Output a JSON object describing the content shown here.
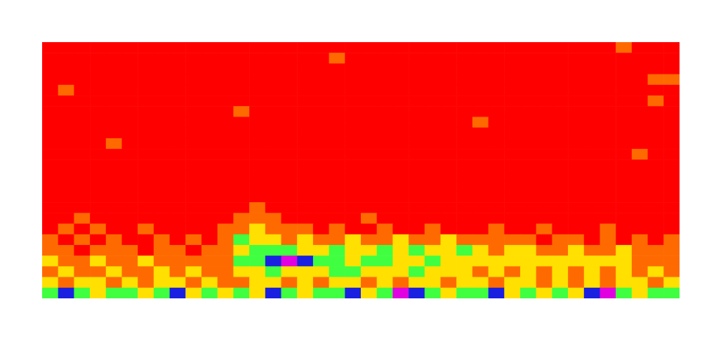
{
  "chart_data": {
    "type": "heatmap",
    "xlim": [
      0,
      40
    ],
    "ylim": [
      0,
      24
    ],
    "tick_labels": false,
    "zlim": [
      0,
      5
    ],
    "cells": [
      [
        0,
        0,
        0,
        0,
        0,
        0,
        0,
        0,
        0,
        0,
        0,
        0,
        0,
        0,
        0,
        0,
        0,
        0,
        0,
        0,
        0,
        0,
        0,
        0,
        0,
        0,
        0,
        0,
        0,
        0,
        0,
        0,
        0,
        0,
        0,
        0,
        1,
        0,
        0,
        0
      ],
      [
        0,
        0,
        0,
        0,
        0,
        0,
        0,
        0,
        0,
        0,
        0,
        0,
        0,
        0,
        0,
        0,
        0,
        0,
        1,
        0,
        0,
        0,
        0,
        0,
        0,
        0,
        0,
        0,
        0,
        0,
        0,
        0,
        0,
        0,
        0,
        0,
        0,
        0,
        0,
        0
      ],
      [
        0,
        0,
        0,
        0,
        0,
        0,
        0,
        0,
        0,
        0,
        0,
        0,
        0,
        0,
        0,
        0,
        0,
        0,
        0,
        0,
        0,
        0,
        0,
        0,
        0,
        0,
        0,
        0,
        0,
        0,
        0,
        0,
        0,
        0,
        0,
        0,
        0,
        0,
        0,
        0
      ],
      [
        0,
        0,
        0,
        0,
        0,
        0,
        0,
        0,
        0,
        0,
        0,
        0,
        0,
        0,
        0,
        0,
        0,
        0,
        0,
        0,
        0,
        0,
        0,
        0,
        0,
        0,
        0,
        0,
        0,
        0,
        0,
        0,
        0,
        0,
        0,
        0,
        0,
        0,
        1,
        1
      ],
      [
        0,
        1,
        0,
        0,
        0,
        0,
        0,
        0,
        0,
        0,
        0,
        0,
        0,
        0,
        0,
        0,
        0,
        0,
        0,
        0,
        0,
        0,
        0,
        0,
        0,
        0,
        0,
        0,
        0,
        0,
        0,
        0,
        0,
        0,
        0,
        0,
        0,
        0,
        0,
        0
      ],
      [
        0,
        0,
        0,
        0,
        0,
        0,
        0,
        0,
        0,
        0,
        0,
        0,
        0,
        0,
        0,
        0,
        0,
        0,
        0,
        0,
        0,
        0,
        0,
        0,
        0,
        0,
        0,
        0,
        0,
        0,
        0,
        0,
        0,
        0,
        0,
        0,
        0,
        0,
        1,
        0
      ],
      [
        0,
        0,
        0,
        0,
        0,
        0,
        0,
        0,
        0,
        0,
        0,
        0,
        1,
        0,
        0,
        0,
        0,
        0,
        0,
        0,
        0,
        0,
        0,
        0,
        0,
        0,
        0,
        0,
        0,
        0,
        0,
        0,
        0,
        0,
        0,
        0,
        0,
        0,
        0,
        0
      ],
      [
        0,
        0,
        0,
        0,
        0,
        0,
        0,
        0,
        0,
        0,
        0,
        0,
        0,
        0,
        0,
        0,
        0,
        0,
        0,
        0,
        0,
        0,
        0,
        0,
        0,
        0,
        0,
        1,
        0,
        0,
        0,
        0,
        0,
        0,
        0,
        0,
        0,
        0,
        0,
        0
      ],
      [
        0,
        0,
        0,
        0,
        0,
        0,
        0,
        0,
        0,
        0,
        0,
        0,
        0,
        0,
        0,
        0,
        0,
        0,
        0,
        0,
        0,
        0,
        0,
        0,
        0,
        0,
        0,
        0,
        0,
        0,
        0,
        0,
        0,
        0,
        0,
        0,
        0,
        0,
        0,
        0
      ],
      [
        0,
        0,
        0,
        0,
        1,
        0,
        0,
        0,
        0,
        0,
        0,
        0,
        0,
        0,
        0,
        0,
        0,
        0,
        0,
        0,
        0,
        0,
        0,
        0,
        0,
        0,
        0,
        0,
        0,
        0,
        0,
        0,
        0,
        0,
        0,
        0,
        0,
        0,
        0,
        0
      ],
      [
        0,
        0,
        0,
        0,
        0,
        0,
        0,
        0,
        0,
        0,
        0,
        0,
        0,
        0,
        0,
        0,
        0,
        0,
        0,
        0,
        0,
        0,
        0,
        0,
        0,
        0,
        0,
        0,
        0,
        0,
        0,
        0,
        0,
        0,
        0,
        0,
        0,
        1,
        0,
        0
      ],
      [
        0,
        0,
        0,
        0,
        0,
        0,
        0,
        0,
        0,
        0,
        0,
        0,
        0,
        0,
        0,
        0,
        0,
        0,
        0,
        0,
        0,
        0,
        0,
        0,
        0,
        0,
        0,
        0,
        0,
        0,
        0,
        0,
        0,
        0,
        0,
        0,
        0,
        0,
        0,
        0
      ],
      [
        0,
        0,
        0,
        0,
        0,
        0,
        0,
        0,
        0,
        0,
        0,
        0,
        0,
        0,
        0,
        0,
        0,
        0,
        0,
        0,
        0,
        0,
        0,
        0,
        0,
        0,
        0,
        0,
        0,
        0,
        0,
        0,
        0,
        0,
        0,
        0,
        0,
        0,
        0,
        0
      ],
      [
        0,
        0,
        0,
        0,
        0,
        0,
        0,
        0,
        0,
        0,
        0,
        0,
        0,
        0,
        0,
        0,
        0,
        0,
        0,
        0,
        0,
        0,
        0,
        0,
        0,
        0,
        0,
        0,
        0,
        0,
        0,
        0,
        0,
        0,
        0,
        0,
        0,
        0,
        0,
        0
      ],
      [
        0,
        0,
        0,
        0,
        0,
        0,
        0,
        0,
        0,
        0,
        0,
        0,
        0,
        0,
        0,
        0,
        0,
        0,
        0,
        0,
        0,
        0,
        0,
        0,
        0,
        0,
        0,
        0,
        0,
        0,
        0,
        0,
        0,
        0,
        0,
        0,
        0,
        0,
        0,
        0
      ],
      [
        0,
        0,
        0,
        0,
        0,
        0,
        0,
        0,
        0,
        0,
        0,
        0,
        0,
        1,
        0,
        0,
        0,
        0,
        0,
        0,
        0,
        0,
        0,
        0,
        0,
        0,
        0,
        0,
        0,
        0,
        0,
        0,
        0,
        0,
        0,
        0,
        0,
        0,
        0,
        0
      ],
      [
        0,
        0,
        1,
        0,
        0,
        0,
        0,
        0,
        0,
        0,
        0,
        0,
        1,
        1,
        1,
        0,
        0,
        0,
        0,
        0,
        1,
        0,
        0,
        0,
        0,
        0,
        0,
        0,
        0,
        0,
        0,
        0,
        0,
        0,
        0,
        0,
        0,
        0,
        0,
        0
      ],
      [
        0,
        1,
        0,
        1,
        0,
        0,
        1,
        0,
        0,
        0,
        0,
        1,
        1,
        2,
        1,
        1,
        1,
        0,
        1,
        0,
        0,
        1,
        0,
        0,
        1,
        0,
        0,
        0,
        1,
        0,
        0,
        1,
        0,
        0,
        0,
        1,
        0,
        0,
        0,
        0
      ],
      [
        1,
        0,
        1,
        0,
        1,
        0,
        0,
        1,
        0,
        1,
        0,
        1,
        3,
        2,
        2,
        1,
        2,
        1,
        1,
        2,
        1,
        1,
        2,
        1,
        1,
        2,
        1,
        1,
        1,
        1,
        1,
        0,
        1,
        1,
        0,
        1,
        0,
        1,
        0,
        1
      ],
      [
        1,
        1,
        0,
        1,
        1,
        1,
        0,
        1,
        1,
        0,
        1,
        1,
        2,
        3,
        3,
        3,
        2,
        2,
        3,
        2,
        2,
        3,
        2,
        3,
        2,
        2,
        3,
        2,
        1,
        2,
        2,
        1,
        1,
        2,
        1,
        1,
        2,
        1,
        1,
        1
      ],
      [
        2,
        1,
        1,
        2,
        1,
        1,
        2,
        1,
        1,
        1,
        1,
        1,
        3,
        3,
        4,
        5,
        4,
        3,
        3,
        2,
        3,
        3,
        2,
        2,
        3,
        2,
        2,
        2,
        2,
        2,
        2,
        2,
        2,
        2,
        2,
        2,
        2,
        1,
        1,
        1
      ],
      [
        1,
        2,
        1,
        1,
        2,
        1,
        1,
        2,
        1,
        2,
        1,
        1,
        2,
        2,
        3,
        2,
        2,
        2,
        3,
        3,
        2,
        2,
        2,
        3,
        2,
        2,
        2,
        1,
        2,
        1,
        2,
        1,
        2,
        1,
        2,
        1,
        2,
        1,
        2,
        1
      ],
      [
        2,
        1,
        2,
        2,
        1,
        2,
        1,
        2,
        2,
        1,
        2,
        1,
        1,
        2,
        2,
        1,
        2,
        1,
        2,
        2,
        1,
        2,
        1,
        2,
        2,
        1,
        2,
        2,
        1,
        2,
        2,
        1,
        2,
        1,
        2,
        1,
        2,
        2,
        1,
        2
      ],
      [
        3,
        4,
        3,
        2,
        3,
        3,
        2,
        3,
        4,
        2,
        3,
        2,
        3,
        2,
        4,
        3,
        2,
        3,
        3,
        4,
        2,
        3,
        5,
        4,
        3,
        2,
        3,
        3,
        4,
        2,
        3,
        2,
        3,
        2,
        4,
        5,
        3,
        2,
        3,
        3
      ]
    ]
  }
}
